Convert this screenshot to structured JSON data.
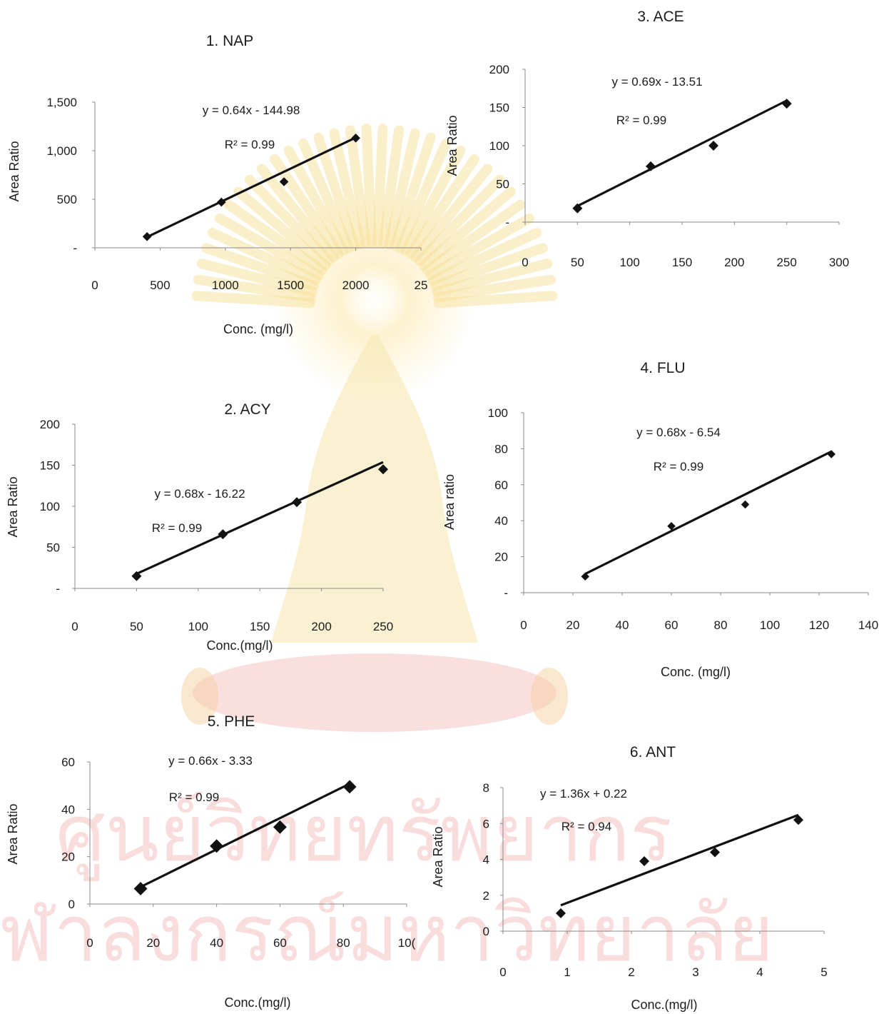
{
  "watermark": {
    "line1": "ศูนย์วิทยทรัพยากร",
    "line2": "จุฬาลงกรณ์มหาวิทยาลัย"
  },
  "chart_data": [
    {
      "id": "nap",
      "type": "scatter",
      "title": "1. NAP",
      "xlabel": "Conc. (mg/l)",
      "ylabel": "Area Ratio",
      "xlim": [
        0,
        2500
      ],
      "ylim": [
        0,
        1500
      ],
      "xticks": [
        "0",
        "500",
        "1000",
        "1500",
        "2000",
        "25"
      ],
      "yticks": [
        "-",
        "500",
        "1,000",
        "1,500"
      ],
      "points": [
        [
          400,
          115
        ],
        [
          970,
          470
        ],
        [
          1450,
          680
        ],
        [
          2000,
          1130
        ]
      ],
      "trendline": {
        "slope": 0.64,
        "intercept": -144.98
      },
      "equation": "y = 0.64x - 144.98",
      "r2": "R² = 0.99"
    },
    {
      "id": "acy",
      "type": "scatter",
      "title": "2. ACY",
      "xlabel": "Conc.(mg/l)",
      "ylabel": "Area Ratio",
      "xlim": [
        0,
        250
      ],
      "ylim": [
        0,
        200
      ],
      "xticks": [
        "0",
        "50",
        "100",
        "150",
        "200",
        "250"
      ],
      "yticks": [
        "-",
        "50",
        "100",
        "150",
        "200"
      ],
      "points": [
        [
          50,
          15
        ],
        [
          120,
          66
        ],
        [
          180,
          105
        ],
        [
          250,
          145
        ]
      ],
      "trendline": {
        "slope": 0.68,
        "intercept": -16.22
      },
      "equation": "y = 0.68x - 16.22",
      "r2": "R² = 0.99"
    },
    {
      "id": "ace",
      "type": "scatter",
      "title": "3. ACE",
      "xlabel": "",
      "ylabel": "Area Ratio",
      "xlim": [
        0,
        300
      ],
      "ylim": [
        0,
        200
      ],
      "xticks": [
        "0",
        "50",
        "100",
        "150",
        "200",
        "250",
        "300"
      ],
      "yticks": [
        "-",
        "50",
        "100",
        "150",
        "200"
      ],
      "points": [
        [
          50,
          18
        ],
        [
          120,
          73
        ],
        [
          180,
          100
        ],
        [
          250,
          155
        ]
      ],
      "trendline": {
        "slope": 0.69,
        "intercept": -13.51
      },
      "equation": "y = 0.69x - 13.51",
      "r2": "R² = 0.99"
    },
    {
      "id": "flu",
      "type": "scatter",
      "title": "4. FLU",
      "xlabel": "Conc. (mg/l)",
      "ylabel": "Area ratio",
      "xlim": [
        0,
        140
      ],
      "ylim": [
        0,
        100
      ],
      "xticks": [
        "0",
        "20",
        "40",
        "60",
        "80",
        "100",
        "120",
        "140"
      ],
      "yticks": [
        "-",
        "20",
        "40",
        "60",
        "80",
        "100"
      ],
      "points": [
        [
          25,
          9
        ],
        [
          60,
          37
        ],
        [
          90,
          49
        ],
        [
          125,
          77
        ]
      ],
      "trendline": {
        "slope": 0.68,
        "intercept": -6.54
      },
      "equation": "y = 0.68x - 6.54",
      "r2": "R² = 0.99"
    },
    {
      "id": "phe",
      "type": "scatter",
      "title": "5. PHE",
      "xlabel": "Conc.(mg/l)",
      "ylabel": "Area Ratio",
      "xlim": [
        0,
        100
      ],
      "ylim": [
        0,
        60
      ],
      "xticks": [
        "0",
        "20",
        "40",
        "60",
        "80",
        "10("
      ],
      "yticks": [
        "0",
        "20",
        "40",
        "60"
      ],
      "points": [
        [
          16,
          6.5
        ],
        [
          40,
          24.5
        ],
        [
          60,
          32.5
        ],
        [
          82,
          49.5
        ]
      ],
      "trendline": {
        "slope": 0.66,
        "intercept": -3.33
      },
      "equation": "y = 0.66x - 3.33",
      "r2": "R² = 0.99"
    },
    {
      "id": "ant",
      "type": "scatter",
      "title": "6. ANT",
      "xlabel": "Conc.(mg/l)",
      "ylabel": "Area Ratio",
      "xlim": [
        0,
        5
      ],
      "ylim": [
        0,
        8
      ],
      "xticks": [
        "0",
        "1",
        "2",
        "3",
        "4",
        "5"
      ],
      "yticks": [
        "0",
        "2",
        "4",
        "6",
        "8"
      ],
      "points": [
        [
          0.9,
          1.0
        ],
        [
          2.2,
          3.9
        ],
        [
          3.3,
          4.4
        ],
        [
          4.6,
          6.2
        ]
      ],
      "trendline": {
        "slope": 1.36,
        "intercept": 0.22
      },
      "equation": "y = 1.36x + 0.22",
      "r2": "R² = 0.94"
    }
  ]
}
